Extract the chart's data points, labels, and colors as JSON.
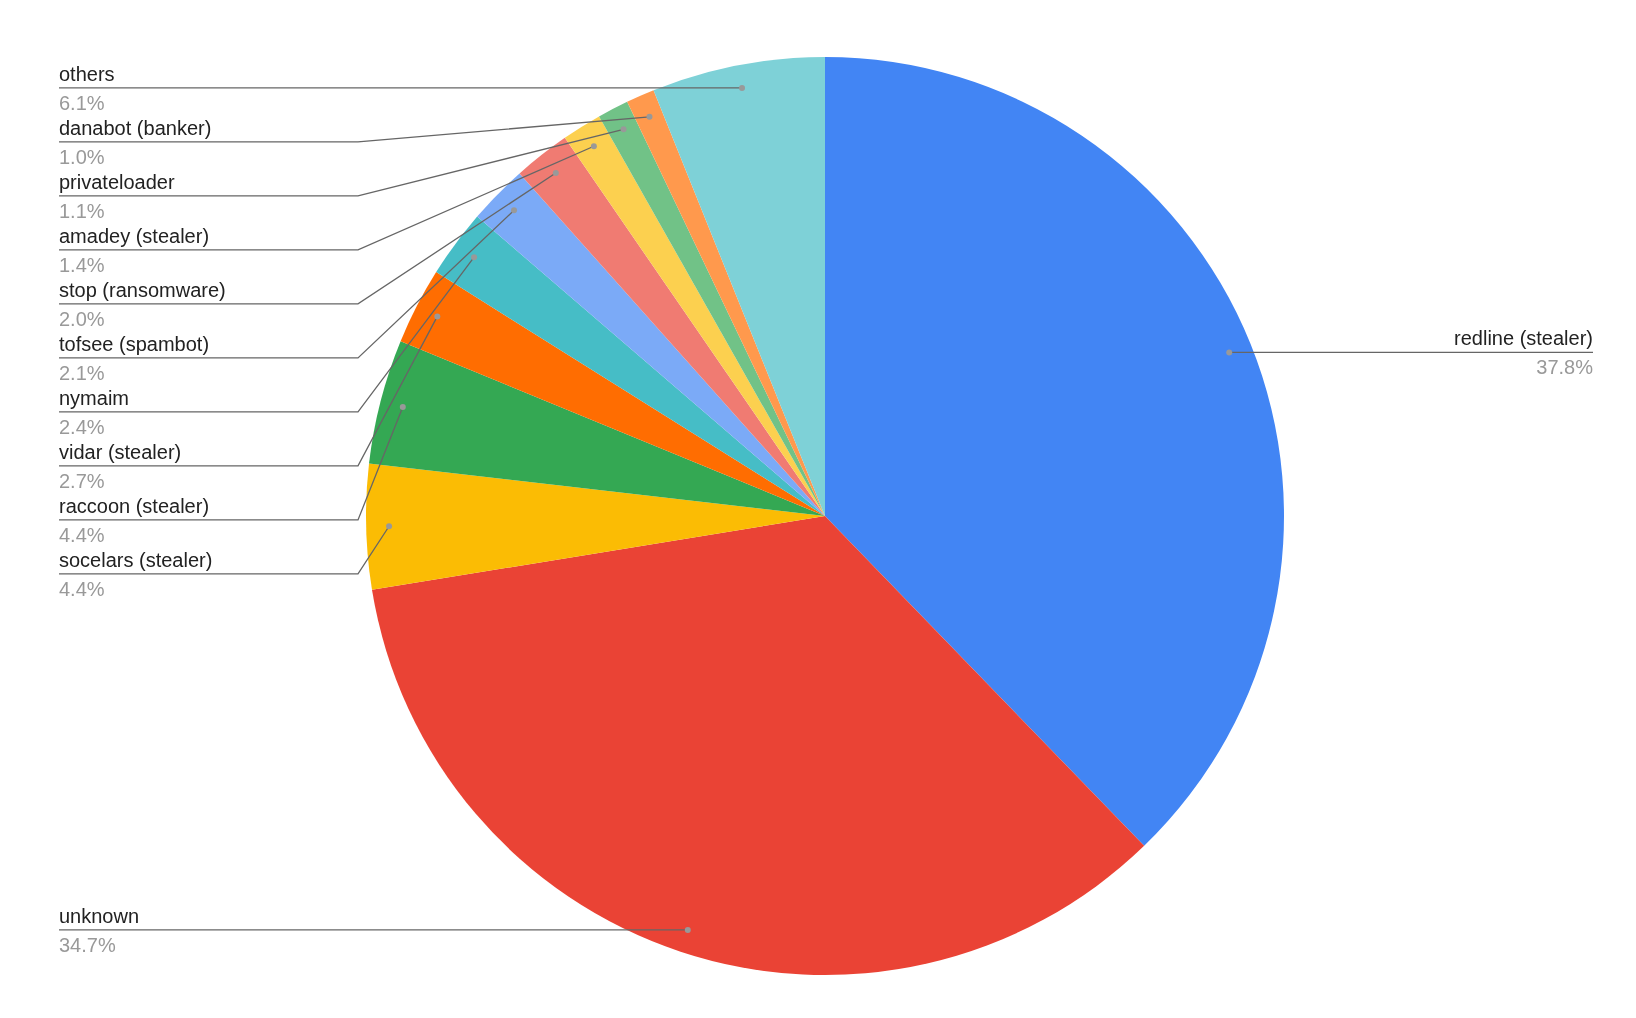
{
  "chart_data": {
    "type": "pie",
    "categories": [
      "redline (stealer)",
      "unknown",
      "socelars (stealer)",
      "raccoon (stealer)",
      "vidar (stealer)",
      "nymaim",
      "tofsee (spambot)",
      "stop (ransomware)",
      "amadey (stealer)",
      "privateloader",
      "danabot (banker)",
      "others"
    ],
    "values": [
      37.8,
      34.7,
      4.4,
      4.4,
      2.7,
      2.4,
      2.1,
      2.0,
      1.4,
      1.1,
      1.0,
      6.1
    ],
    "value_labels": [
      "37.8%",
      "34.7%",
      "4.4%",
      "4.4%",
      "2.7%",
      "2.4%",
      "2.1%",
      "2.0%",
      "1.4%",
      "1.1%",
      "1.0%",
      "6.1%"
    ],
    "colors": [
      "#4285f4",
      "#ea4335",
      "#fbbc04",
      "#34a853",
      "#ff6d01",
      "#46bdc6",
      "#7baaf7",
      "#f07b72",
      "#fcd04f",
      "#71c287",
      "#ff994d",
      "#7ed1d7"
    ]
  }
}
